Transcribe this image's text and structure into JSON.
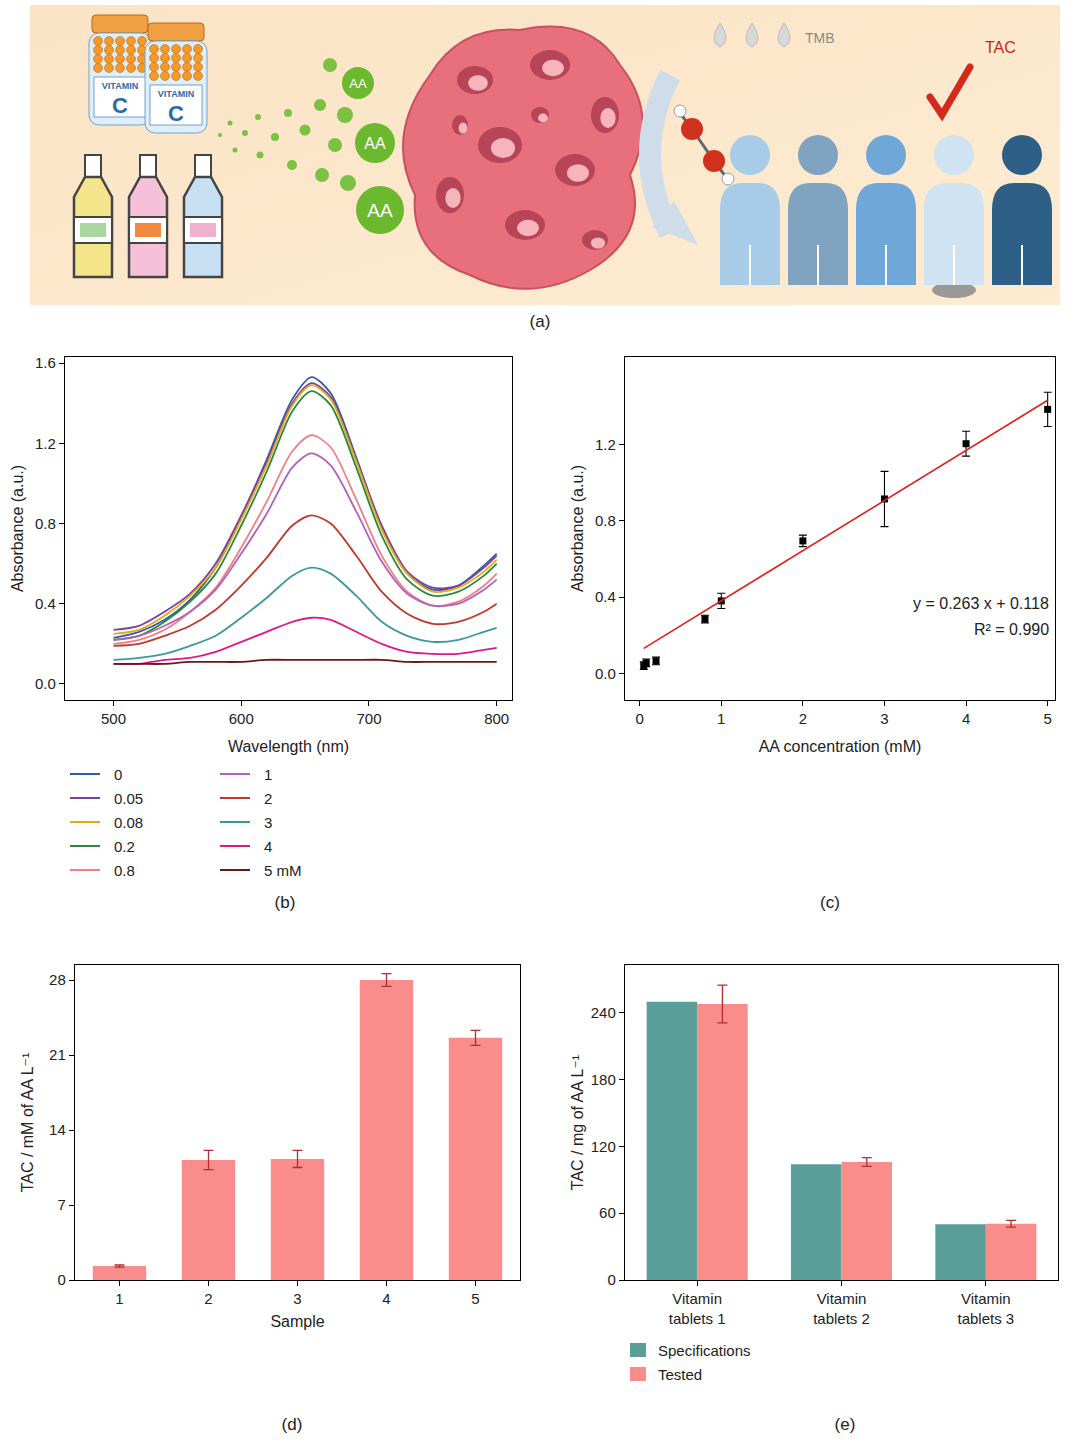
{
  "schematic": {
    "panel": "(a)",
    "bottle_text": [
      "VITAMIN",
      "C"
    ],
    "particle_label": "AA",
    "reagent_label": "TMB",
    "result_label": "TAC"
  },
  "chart_data": [
    {
      "panel": "(b)",
      "type": "line",
      "x_label": "Wavelength (nm)",
      "y_label": "Absorbance (a.u.)",
      "x": [
        500,
        520,
        540,
        560,
        580,
        600,
        620,
        640,
        655,
        670,
        690,
        710,
        730,
        750,
        770,
        790,
        800
      ],
      "series": [
        {
          "name": "0",
          "color": "#2e5fa6",
          "values": [
            0.23,
            0.26,
            0.32,
            0.42,
            0.58,
            0.83,
            1.12,
            1.42,
            1.53,
            1.45,
            1.13,
            0.78,
            0.55,
            0.47,
            0.49,
            0.59,
            0.65
          ]
        },
        {
          "name": "0.05",
          "color": "#7b3fa0",
          "values": [
            0.27,
            0.29,
            0.36,
            0.45,
            0.6,
            0.84,
            1.11,
            1.4,
            1.5,
            1.43,
            1.12,
            0.79,
            0.56,
            0.48,
            0.49,
            0.58,
            0.64
          ]
        },
        {
          "name": "0.08",
          "color": "#e6a817",
          "values": [
            0.25,
            0.27,
            0.34,
            0.44,
            0.58,
            0.82,
            1.09,
            1.39,
            1.49,
            1.42,
            1.11,
            0.77,
            0.55,
            0.46,
            0.48,
            0.56,
            0.62
          ]
        },
        {
          "name": "0.2",
          "color": "#2a8a3a",
          "values": [
            0.22,
            0.24,
            0.31,
            0.41,
            0.55,
            0.79,
            1.06,
            1.36,
            1.46,
            1.39,
            1.08,
            0.74,
            0.52,
            0.44,
            0.46,
            0.54,
            0.6
          ]
        },
        {
          "name": "0.8",
          "color": "#f08080",
          "values": [
            0.2,
            0.22,
            0.27,
            0.36,
            0.48,
            0.68,
            0.91,
            1.16,
            1.24,
            1.18,
            0.92,
            0.64,
            0.46,
            0.39,
            0.41,
            0.49,
            0.55
          ]
        },
        {
          "name": "1",
          "color": "#b060c0",
          "values": [
            0.22,
            0.24,
            0.29,
            0.36,
            0.47,
            0.65,
            0.85,
            1.08,
            1.15,
            1.09,
            0.86,
            0.61,
            0.45,
            0.39,
            0.4,
            0.47,
            0.52
          ]
        },
        {
          "name": "2",
          "color": "#c0392b",
          "values": [
            0.19,
            0.2,
            0.24,
            0.29,
            0.37,
            0.49,
            0.63,
            0.79,
            0.84,
            0.8,
            0.64,
            0.46,
            0.35,
            0.3,
            0.31,
            0.36,
            0.4
          ]
        },
        {
          "name": "3",
          "color": "#3a9a9a",
          "values": [
            0.12,
            0.13,
            0.15,
            0.19,
            0.24,
            0.33,
            0.43,
            0.54,
            0.58,
            0.55,
            0.44,
            0.31,
            0.24,
            0.21,
            0.22,
            0.26,
            0.28
          ]
        },
        {
          "name": "4",
          "color": "#d81b8c",
          "values": [
            0.1,
            0.1,
            0.12,
            0.13,
            0.16,
            0.21,
            0.26,
            0.31,
            0.33,
            0.32,
            0.26,
            0.2,
            0.16,
            0.15,
            0.15,
            0.17,
            0.18
          ]
        },
        {
          "name": "5 mM",
          "color": "#6b1a10",
          "values": [
            0.1,
            0.1,
            0.1,
            0.11,
            0.11,
            0.11,
            0.12,
            0.12,
            0.12,
            0.12,
            0.12,
            0.12,
            0.11,
            0.11,
            0.11,
            0.11,
            0.11
          ]
        }
      ],
      "xlim": [
        462,
        812
      ],
      "xticks": [
        500,
        600,
        700,
        800
      ],
      "ylim": [
        -0.08,
        1.63
      ],
      "yticks": [
        {
          "value": 0,
          "label": "0.0"
        },
        0.4,
        0.8,
        1.2,
        1.6
      ],
      "grid": false,
      "legend": "bottom"
    },
    {
      "panel": "(c)",
      "type": "scatter",
      "x_label": "AA concentration (mM)",
      "y_label": "Absorbance (a.u.)",
      "series": [
        {
          "type": "scatter",
          "color": "#000000",
          "marker": "square",
          "x": [
            0.05,
            0.08,
            0.2,
            0.8,
            1,
            2,
            3,
            4,
            5
          ],
          "values": [
            0.04,
            0.055,
            0.065,
            0.285,
            0.38,
            0.695,
            0.915,
            1.205,
            1.385
          ],
          "errors": [
            0.02,
            0.02,
            0.02,
            0.02,
            0.04,
            0.03,
            0.145,
            0.065,
            0.09
          ]
        },
        {
          "type": "line",
          "color": "#e02020",
          "line_style": "solid",
          "x": [
            0.05,
            5
          ],
          "values": [
            0.131,
            1.433
          ]
        }
      ],
      "annotations": [
        "y = 0.263 x + 0.118",
        "R² = 0.990"
      ],
      "xlim": [
        -0.18,
        5.09
      ],
      "xticks": [
        0,
        1,
        2,
        3,
        4,
        5
      ],
      "ylim": [
        -0.14,
        1.66
      ],
      "yticks": [
        {
          "value": 0,
          "label": "0.0"
        },
        0.4,
        0.8,
        1.2
      ],
      "grid": false
    },
    {
      "panel": "(d)",
      "type": "bar",
      "x_label": "Sample",
      "y_label": "TAC / mM of AA L⁻¹",
      "categories": [
        "1",
        "2",
        "3",
        "4",
        "5"
      ],
      "values": [
        1.3,
        11.2,
        11.3,
        28.0,
        22.6
      ],
      "errors": [
        0.1,
        0.9,
        0.8,
        0.6,
        0.7
      ],
      "color": "#fa8c8c",
      "ylim": [
        0,
        29.4
      ],
      "yticks": [
        0,
        7,
        14,
        21,
        28
      ],
      "grid": false
    },
    {
      "panel": "(e)",
      "type": "bar",
      "y_label": "TAC / mg of AA L⁻¹",
      "categories": [
        "Vitamin tablets 1",
        "Vitamin tablets 2",
        "Vitamin tablets 3"
      ],
      "series": [
        {
          "name": "Specifications",
          "color": "#5a9e9a",
          "values": [
            250,
            104,
            50
          ]
        },
        {
          "name": "Tested",
          "color": "#fa8c8c",
          "values": [
            248,
            106,
            50.5
          ],
          "errors": [
            17,
            4,
            3
          ]
        }
      ],
      "ylim": [
        0,
        283
      ],
      "yticks": [
        0,
        60,
        120,
        180,
        240
      ],
      "grid": false,
      "legend": "bottom"
    }
  ]
}
